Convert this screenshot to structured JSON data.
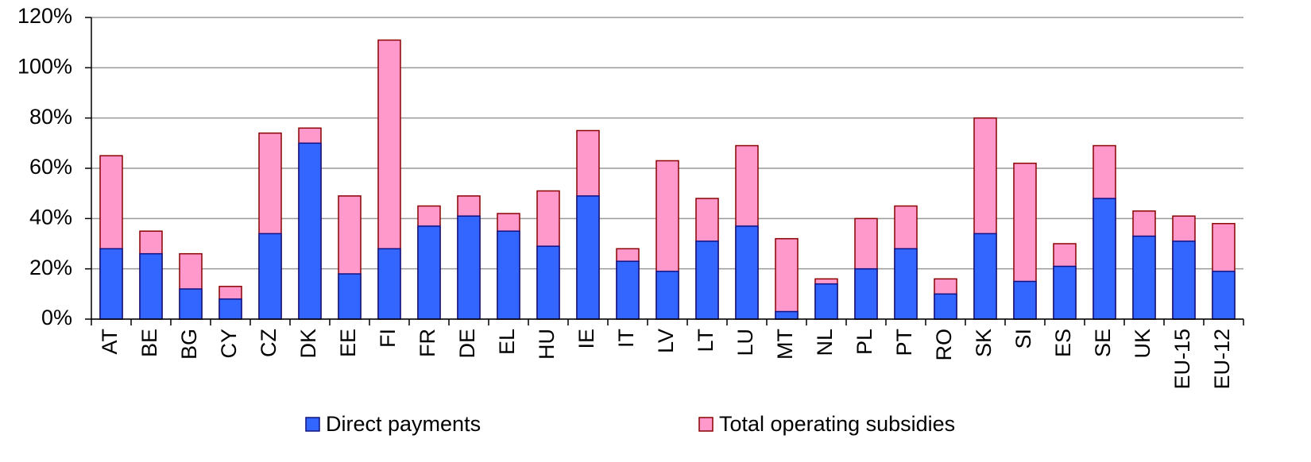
{
  "chart_data": {
    "type": "bar",
    "categories": [
      "AT",
      "BE",
      "BG",
      "CY",
      "CZ",
      "DK",
      "EE",
      "FI",
      "FR",
      "DE",
      "EL",
      "HU",
      "IE",
      "IT",
      "LV",
      "LT",
      "LU",
      "MT",
      "NL",
      "PL",
      "PT",
      "RO",
      "SK",
      "SI",
      "ES",
      "SE",
      "UK",
      "EU-15",
      "EU-12"
    ],
    "series": [
      {
        "name": "Total operating subsidies",
        "color": "#ff99cc",
        "values": [
          65,
          35,
          26,
          13,
          74,
          76,
          49,
          111,
          45,
          49,
          42,
          51,
          75,
          28,
          63,
          48,
          69,
          32,
          16,
          40,
          45,
          16,
          80,
          62,
          30,
          69,
          43,
          41,
          38
        ]
      },
      {
        "name": "Direct payments",
        "color": "#3366ff",
        "values": [
          28,
          26,
          12,
          8,
          34,
          70,
          18,
          28,
          37,
          41,
          35,
          29,
          49,
          23,
          19,
          31,
          37,
          3,
          14,
          20,
          28,
          10,
          34,
          15,
          21,
          48,
          33,
          31,
          19
        ]
      }
    ],
    "ylim": [
      0,
      120
    ],
    "yticks": [
      {
        "value": 0,
        "label": "0%"
      },
      {
        "value": 20,
        "label": "20%"
      },
      {
        "value": 40,
        "label": "40%"
      },
      {
        "value": 60,
        "label": "60%"
      },
      {
        "value": 80,
        "label": "80%"
      },
      {
        "value": 100,
        "label": "100%"
      },
      {
        "value": 120,
        "label": "120%"
      }
    ],
    "grid": true
  }
}
